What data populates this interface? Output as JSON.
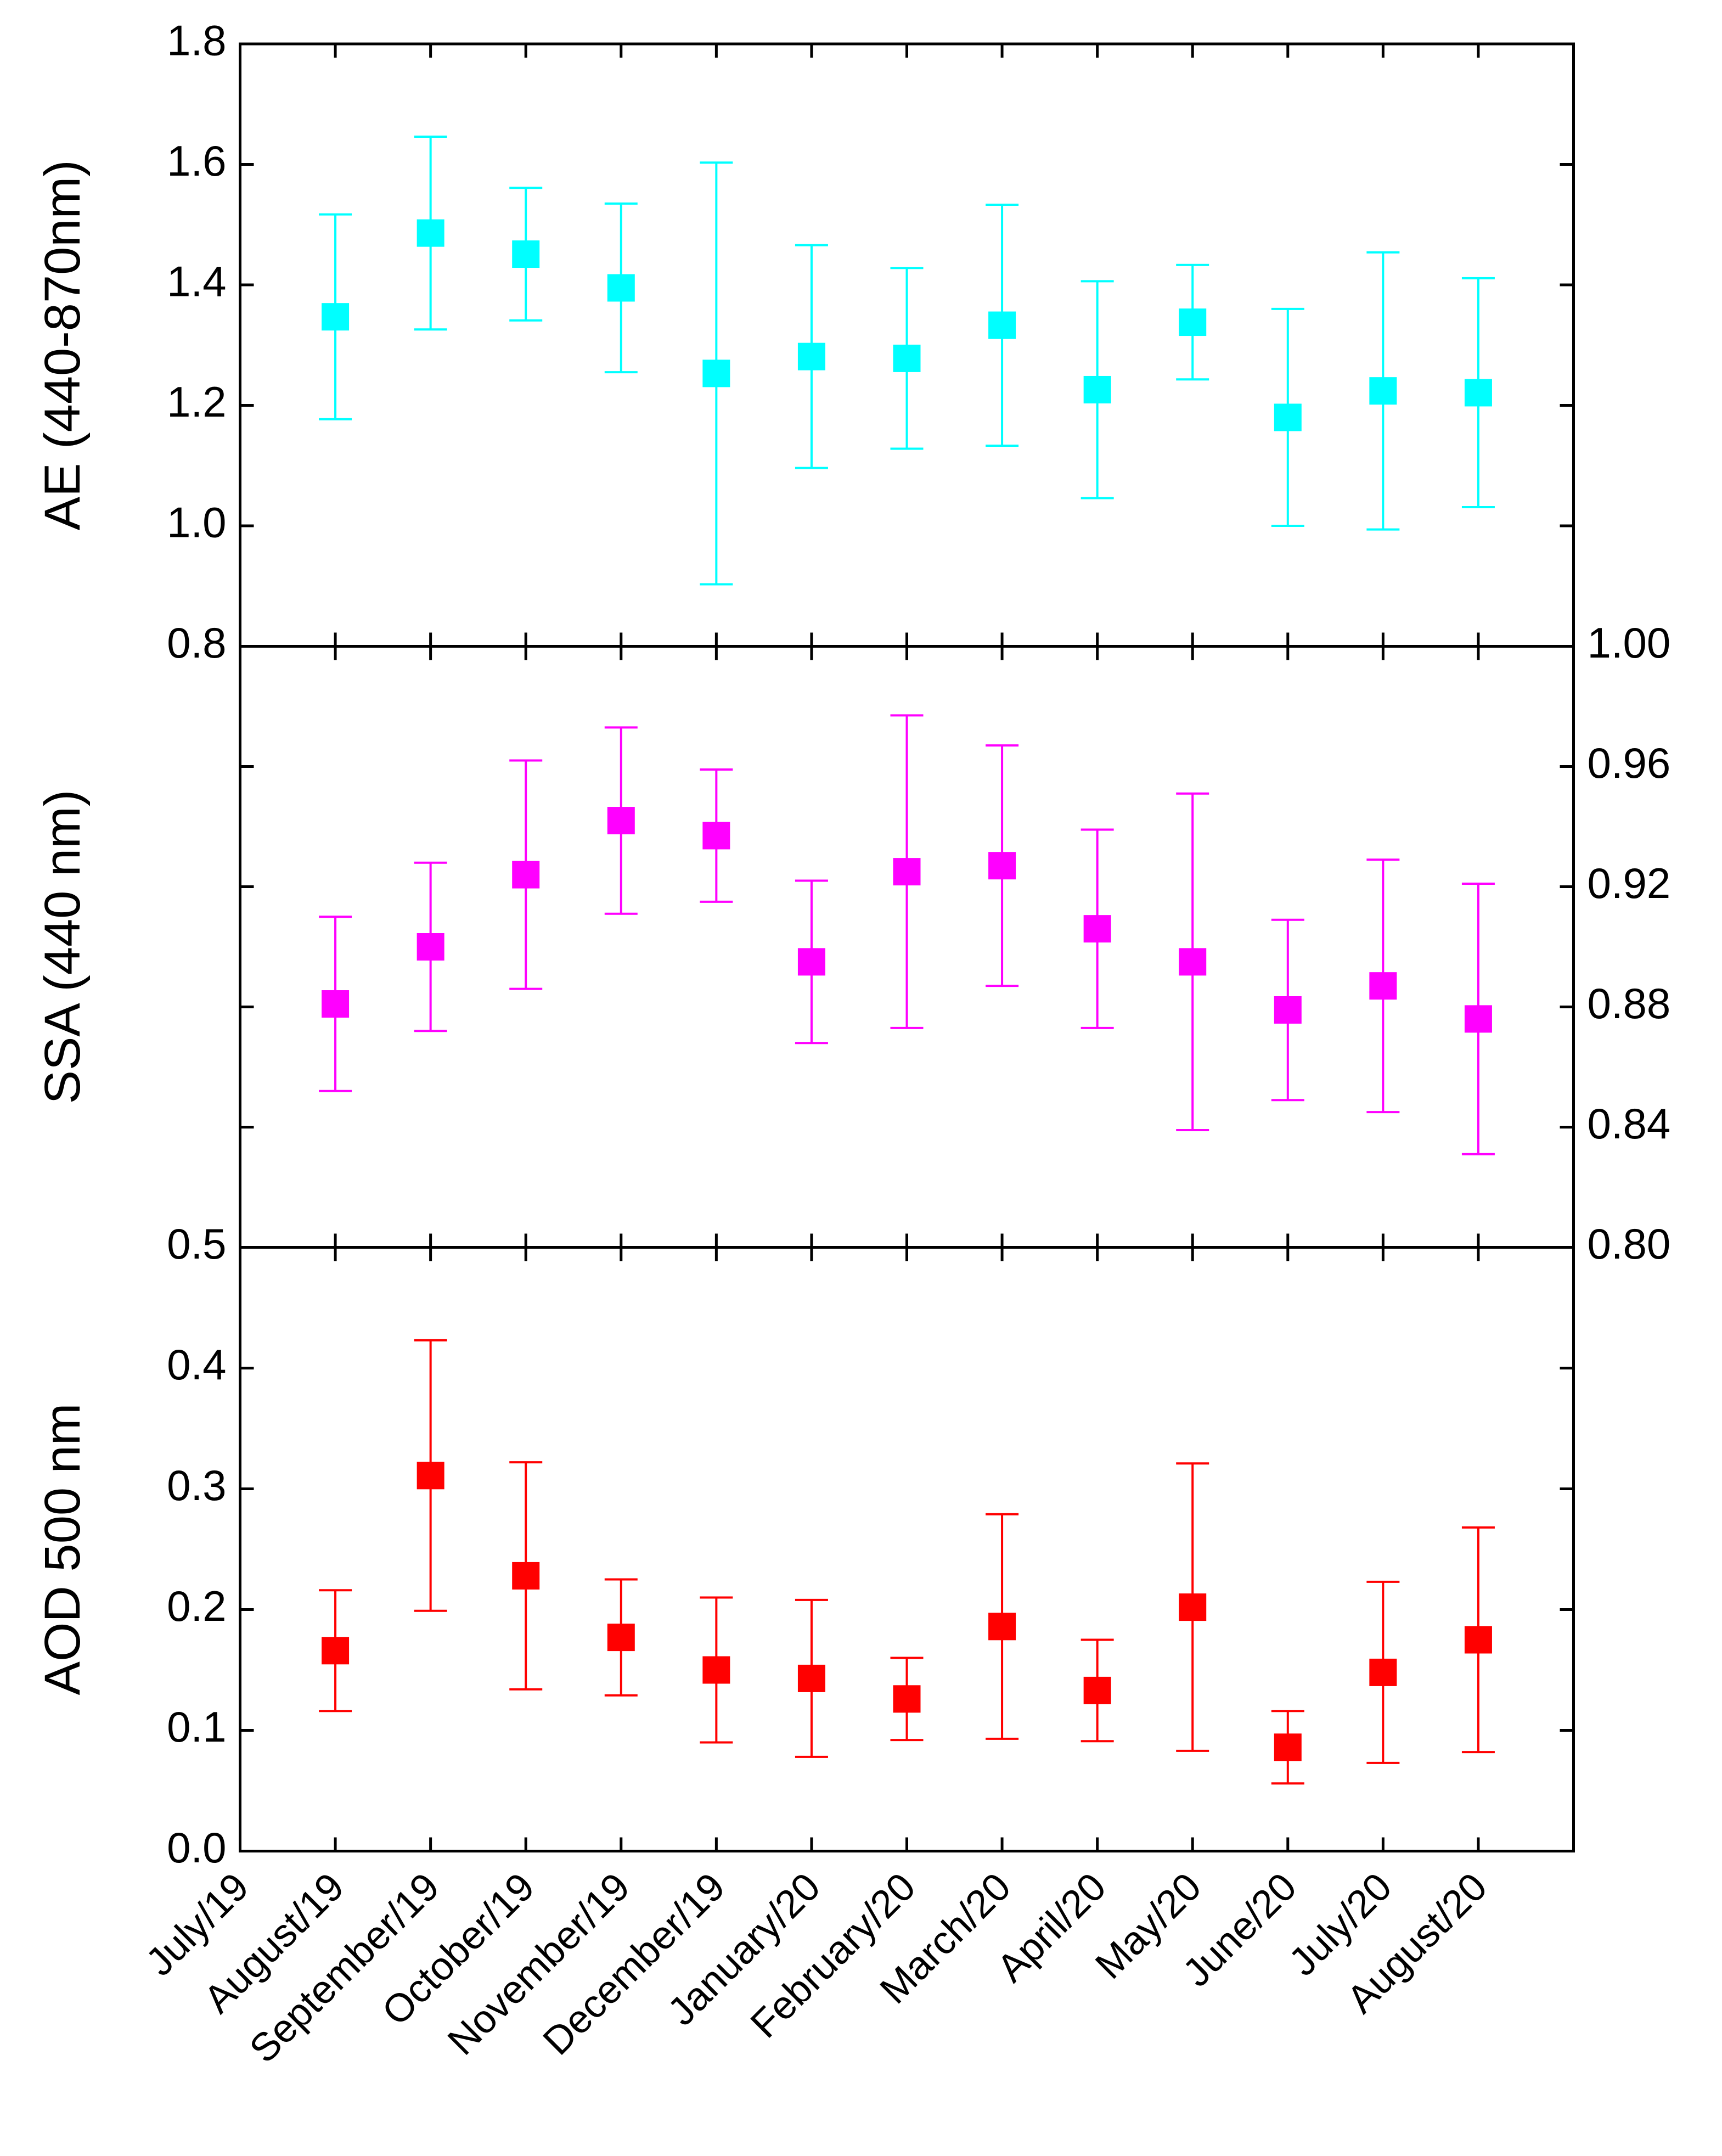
{
  "chart_data": [
    {
      "type": "errorbar",
      "y_label": "AE (440-870nm)",
      "y_side": "left",
      "ylim": [
        0.8,
        1.8
      ],
      "yticks": [
        0.8,
        {
          "value": 1,
          "label": "1.0"
        },
        1.2,
        1.4,
        1.6,
        1.8
      ],
      "series": [
        {
          "color": "#00ffff",
          "values": [
            null,
            1.347,
            1.486,
            1.451,
            1.395,
            1.253,
            1.281,
            1.278,
            1.333,
            1.226,
            1.338,
            1.18,
            1.224,
            1.221
          ],
          "errors": [
            null,
            0.17,
            0.16,
            0.11,
            0.14,
            0.35,
            0.185,
            0.15,
            0.2,
            0.18,
            0.095,
            0.18,
            0.23,
            0.19
          ]
        }
      ]
    },
    {
      "type": "errorbar",
      "y_label": "SSA (440 nm)",
      "y_side": "right",
      "ylim": [
        0.8,
        1
      ],
      "yticks": [
        {
          "value": 0.8,
          "label": "0.80"
        },
        0.84,
        0.88,
        0.92,
        0.96,
        {
          "value": 1,
          "label": "1.00"
        }
      ],
      "series": [
        {
          "color": "#ff00ff",
          "values": [
            null,
            0.881,
            0.9,
            0.924,
            0.942,
            0.937,
            0.895,
            0.925,
            0.927,
            0.906,
            0.895,
            0.879,
            0.887,
            0.876
          ],
          "errors": [
            null,
            0.029,
            0.028,
            0.038,
            0.031,
            0.022,
            0.027,
            0.052,
            0.04,
            0.033,
            0.056,
            0.03,
            0.042,
            0.045
          ]
        }
      ]
    },
    {
      "type": "errorbar",
      "y_label": "AOD 500 nm",
      "y_side": "left",
      "ylim": [
        0,
        0.5
      ],
      "yticks": [
        {
          "value": 0,
          "label": "0.0"
        },
        0.1,
        0.2,
        0.3,
        0.4,
        0.5
      ],
      "categories": [
        "July/19",
        "August/19",
        "September/19",
        "October/19",
        "November/19",
        "December/19",
        "January/20",
        "February/20",
        "March/20",
        "April/20",
        "May/20",
        "June/20",
        "July/20",
        "August/20"
      ],
      "series": [
        {
          "color": "#ff0000",
          "values": [
            null,
            0.166,
            0.311,
            0.228,
            0.177,
            0.15,
            0.143,
            0.126,
            0.186,
            0.133,
            0.202,
            0.086,
            0.148,
            0.175
          ],
          "errors": [
            null,
            0.05,
            0.112,
            0.094,
            0.048,
            0.06,
            0.065,
            0.034,
            0.093,
            0.042,
            0.119,
            0.03,
            0.075,
            0.093
          ]
        }
      ]
    }
  ]
}
